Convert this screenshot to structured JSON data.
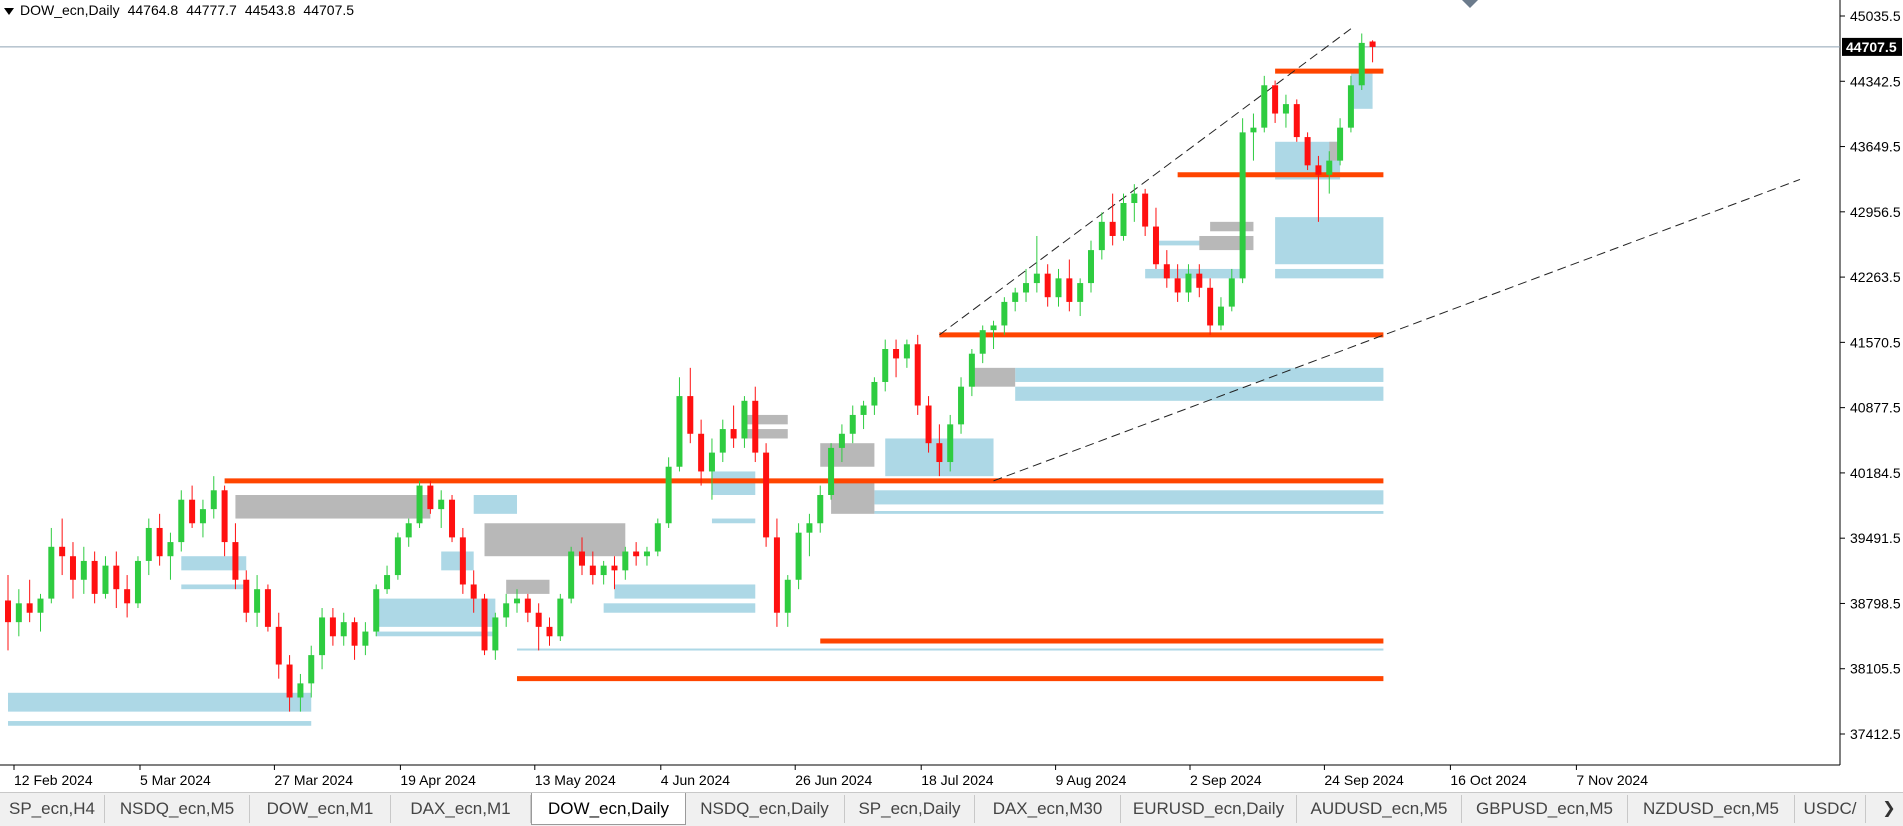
{
  "header": {
    "symbol": "DOW_ecn,Daily",
    "open": "44764.8",
    "high": "44777.7",
    "low": "44543.8",
    "close": "44707.5"
  },
  "chart_data": {
    "type": "candlestick",
    "ylim": [
      37100,
      45250
    ],
    "price_labels": [
      "45035.5",
      "44342.5",
      "43649.5",
      "42956.5",
      "42263.5",
      "41570.5",
      "40877.5",
      "40184.5",
      "39491.5",
      "38798.5",
      "38105.5",
      "37412.5"
    ],
    "current_price": "44707.5",
    "date_labels": [
      "12 Feb 2024",
      "5 Mar 2024",
      "27 Mar 2024",
      "19 Apr 2024",
      "13 May 2024",
      "4 Jun 2024",
      "26 Jun 2024",
      "18 Jul 2024",
      "9 Aug 2024",
      "2 Sep 2024",
      "24 Sep 2024",
      "16 Oct 2024",
      "7 Nov 2024"
    ],
    "candles": [
      [
        38830,
        39100,
        38300,
        38600
      ],
      [
        38600,
        38950,
        38450,
        38800
      ],
      [
        38800,
        39050,
        38600,
        38700
      ],
      [
        38700,
        38900,
        38500,
        38850
      ],
      [
        38850,
        39600,
        38800,
        39400
      ],
      [
        39400,
        39700,
        39100,
        39300
      ],
      [
        39300,
        39450,
        38850,
        39050
      ],
      [
        39050,
        39400,
        38900,
        39250
      ],
      [
        39250,
        39350,
        38800,
        38900
      ],
      [
        38900,
        39300,
        38850,
        39200
      ],
      [
        39200,
        39350,
        38750,
        38950
      ],
      [
        38950,
        39100,
        38650,
        38800
      ],
      [
        38800,
        39300,
        38750,
        39250
      ],
      [
        39250,
        39700,
        39100,
        39600
      ],
      [
        39600,
        39750,
        39200,
        39300
      ],
      [
        39300,
        39550,
        39050,
        39450
      ],
      [
        39450,
        40000,
        39350,
        39900
      ],
      [
        39900,
        40050,
        39600,
        39650
      ],
      [
        39650,
        39900,
        39500,
        39800
      ],
      [
        39800,
        40150,
        39700,
        40000
      ],
      [
        40000,
        40050,
        39300,
        39450
      ],
      [
        39450,
        39650,
        38950,
        39050
      ],
      [
        39050,
        39150,
        38600,
        38700
      ],
      [
        38700,
        39100,
        38550,
        38950
      ],
      [
        38950,
        39000,
        38500,
        38550
      ],
      [
        38550,
        38700,
        38000,
        38150
      ],
      [
        38150,
        38250,
        37650,
        37800
      ],
      [
        37800,
        38050,
        37650,
        37950
      ],
      [
        37950,
        38350,
        37800,
        38250
      ],
      [
        38250,
        38750,
        38100,
        38650
      ],
      [
        38650,
        38750,
        38350,
        38450
      ],
      [
        38450,
        38700,
        38350,
        38600
      ],
      [
        38600,
        38650,
        38200,
        38350
      ],
      [
        38350,
        38600,
        38250,
        38500
      ],
      [
        38500,
        39000,
        38450,
        38950
      ],
      [
        38950,
        39200,
        38900,
        39100
      ],
      [
        39100,
        39550,
        39050,
        39500
      ],
      [
        39500,
        39700,
        39400,
        39650
      ],
      [
        39650,
        40100,
        39600,
        40050
      ],
      [
        40050,
        40100,
        39750,
        39800
      ],
      [
        39800,
        40000,
        39600,
        39900
      ],
      [
        39900,
        39950,
        39450,
        39500
      ],
      [
        39500,
        39600,
        38900,
        39000
      ],
      [
        39000,
        39150,
        38700,
        38850
      ],
      [
        38850,
        38900,
        38250,
        38300
      ],
      [
        38300,
        38700,
        38200,
        38650
      ],
      [
        38650,
        38900,
        38550,
        38800
      ],
      [
        38800,
        38950,
        38700,
        38850
      ],
      [
        38850,
        38900,
        38600,
        38700
      ],
      [
        38700,
        38800,
        38300,
        38550
      ],
      [
        38550,
        38650,
        38350,
        38450
      ],
      [
        38450,
        38900,
        38400,
        38850
      ],
      [
        38850,
        39400,
        38800,
        39350
      ],
      [
        39350,
        39500,
        39100,
        39200
      ],
      [
        39200,
        39350,
        39000,
        39100
      ],
      [
        39100,
        39250,
        39000,
        39200
      ],
      [
        39200,
        39300,
        38950,
        39150
      ],
      [
        39150,
        39400,
        39050,
        39350
      ],
      [
        39350,
        39450,
        39200,
        39300
      ],
      [
        39300,
        39400,
        39200,
        39350
      ],
      [
        39350,
        39700,
        39300,
        39650
      ],
      [
        39650,
        40350,
        39600,
        40250
      ],
      [
        40250,
        41200,
        40200,
        41000
      ],
      [
        41000,
        41300,
        40500,
        40600
      ],
      [
        40600,
        40750,
        40050,
        40200
      ],
      [
        40200,
        40550,
        39900,
        40400
      ],
      [
        40400,
        40750,
        40300,
        40650
      ],
      [
        40650,
        40900,
        40450,
        40550
      ],
      [
        40550,
        41000,
        40450,
        40950
      ],
      [
        40950,
        41100,
        40300,
        40400
      ],
      [
        40400,
        40500,
        39400,
        39500
      ],
      [
        39500,
        39700,
        38550,
        38700
      ],
      [
        38700,
        39100,
        38550,
        39050
      ],
      [
        39050,
        39650,
        38950,
        39550
      ],
      [
        39550,
        39750,
        39300,
        39650
      ],
      [
        39650,
        40050,
        39550,
        39950
      ],
      [
        39950,
        40500,
        39900,
        40450
      ],
      [
        40450,
        40700,
        40300,
        40600
      ],
      [
        40600,
        40900,
        40500,
        40800
      ],
      [
        40800,
        40950,
        40650,
        40900
      ],
      [
        40900,
        41200,
        40800,
        41150
      ],
      [
        41150,
        41600,
        41050,
        41500
      ],
      [
        41500,
        41600,
        41200,
        41400
      ],
      [
        41400,
        41600,
        41300,
        41550
      ],
      [
        41550,
        41650,
        40800,
        40900
      ],
      [
        40900,
        41000,
        40400,
        40500
      ],
      [
        40500,
        40700,
        40150,
        40300
      ],
      [
        40300,
        40800,
        40200,
        40700
      ],
      [
        40700,
        41200,
        40600,
        41100
      ],
      [
        41100,
        41500,
        41000,
        41450
      ],
      [
        41450,
        41750,
        41350,
        41700
      ],
      [
        41700,
        41800,
        41500,
        41750
      ],
      [
        41750,
        42050,
        41650,
        42000
      ],
      [
        42000,
        42150,
        41900,
        42100
      ],
      [
        42100,
        42350,
        42000,
        42200
      ],
      [
        42200,
        42700,
        42100,
        42300
      ],
      [
        42300,
        42400,
        41950,
        42050
      ],
      [
        42050,
        42350,
        41950,
        42250
      ],
      [
        42250,
        42450,
        41900,
        42000
      ],
      [
        42000,
        42250,
        41850,
        42200
      ],
      [
        42200,
        42650,
        42100,
        42550
      ],
      [
        42550,
        42950,
        42450,
        42850
      ],
      [
        42850,
        43150,
        42600,
        42700
      ],
      [
        42700,
        43150,
        42650,
        43050
      ],
      [
        43050,
        43250,
        42850,
        43150
      ],
      [
        43150,
        43200,
        42700,
        42800
      ],
      [
        42800,
        43000,
        42350,
        42400
      ],
      [
        42400,
        42550,
        42150,
        42250
      ],
      [
        42250,
        42400,
        42000,
        42100
      ],
      [
        42100,
        42400,
        42000,
        42300
      ],
      [
        42300,
        42400,
        42050,
        42150
      ],
      [
        42150,
        42250,
        41650,
        41750
      ],
      [
        41750,
        42050,
        41700,
        41950
      ],
      [
        41950,
        42350,
        41900,
        42250
      ],
      [
        42250,
        43950,
        42200,
        43800
      ],
      [
        43800,
        44000,
        43500,
        43850
      ],
      [
        43850,
        44400,
        43800,
        44300
      ],
      [
        44300,
        44350,
        43900,
        44000
      ],
      [
        44000,
        44200,
        43850,
        44100
      ],
      [
        44100,
        44150,
        43700,
        43750
      ],
      [
        43750,
        43800,
        43400,
        43450
      ],
      [
        43450,
        43550,
        42850,
        43350
      ],
      [
        43350,
        43600,
        43150,
        43500
      ],
      [
        43500,
        43950,
        43450,
        43850
      ],
      [
        43850,
        44400,
        43800,
        44300
      ],
      [
        44300,
        44850,
        44250,
        44750
      ],
      [
        44764.8,
        44777.7,
        44543.8,
        44707.5
      ]
    ],
    "resistance_levels": [
      44450,
      43350,
      41650,
      40100,
      38400,
      38000
    ],
    "colors": {
      "bull": "#2ecc40",
      "bear": "#ff1010",
      "level": "#ff4500",
      "zone_blue": "#add8e6",
      "zone_gray": "#b8b8b8",
      "grid": "#8fa3b5"
    }
  },
  "tabs": [
    {
      "label": "SP_ecn,H4",
      "active": false
    },
    {
      "label": "NSDQ_ecn,M5",
      "active": false
    },
    {
      "label": "DOW_ecn,M1",
      "active": false
    },
    {
      "label": "DAX_ecn,M1",
      "active": false
    },
    {
      "label": "DOW_ecn,Daily",
      "active": true
    },
    {
      "label": "NSDQ_ecn,Daily",
      "active": false
    },
    {
      "label": "SP_ecn,Daily",
      "active": false
    },
    {
      "label": "DAX_ecn,M30",
      "active": false
    },
    {
      "label": "EURUSD_ecn,Daily",
      "active": false
    },
    {
      "label": "AUDUSD_ecn,M5",
      "active": false
    },
    {
      "label": "GBPUSD_ecn,M5",
      "active": false
    },
    {
      "label": "NZDUSD_ecn,M5",
      "active": false
    },
    {
      "label": "USDC/",
      "active": false
    }
  ],
  "tab_scroll_icon": "chevron-right-icon"
}
